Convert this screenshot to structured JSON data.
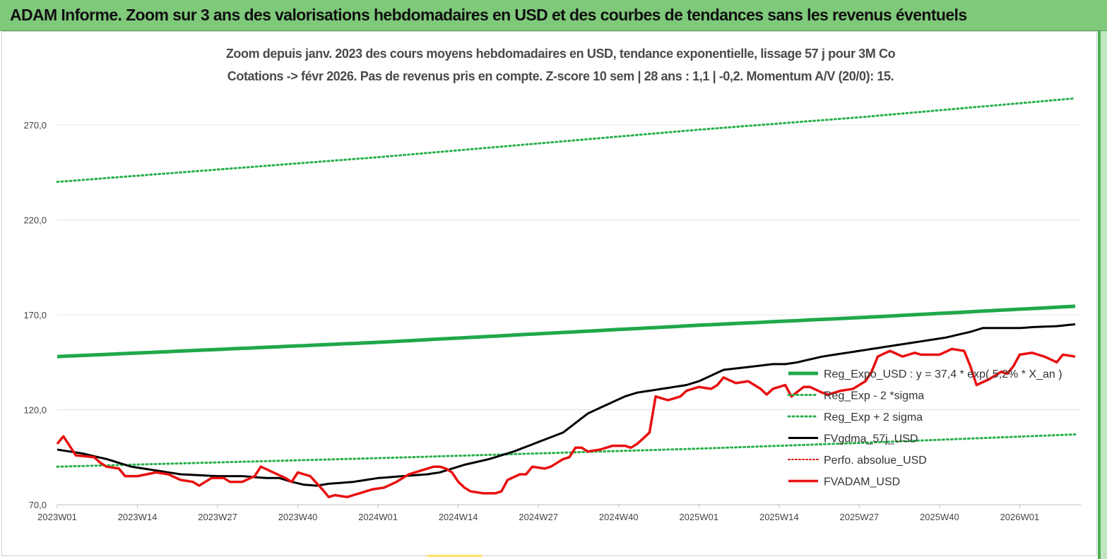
{
  "header": {
    "title": "ADAM Informe. Zoom sur 3 ans des valorisations hebdomadaires en USD et des courbes de tendances sans les revenus éventuels"
  },
  "colors": {
    "banner": "#7ec97a",
    "reg_expo": "#1fa84a",
    "sigma": "#28b04a",
    "fvgdma": "#000000",
    "perfo": "#e01010",
    "fvadam": "#e81010"
  },
  "chart_data": {
    "type": "line",
    "title": "Zoom depuis janv. 2023 des cours moyens hebdomadaires en USD, tendance exponentielle, lissage 57 j pour 3M Co",
    "subtitle": "Cotations -> févr 2026.  Pas de revenus pris en compte. Z-score 10 sem | 28 ans : 1,1 | -0,2. Momentum A/V (20/0): 15.",
    "ylim": [
      70,
      295
    ],
    "yticks": [
      "70,0",
      "120,0",
      "170,0",
      "220,0",
      "270,0"
    ],
    "ytick_values": [
      70,
      120,
      170,
      220,
      270
    ],
    "x_count": 166,
    "xticks": [
      "2023W01",
      "2023W14",
      "2023W27",
      "2023W40",
      "2024W01",
      "2024W14",
      "2024W27",
      "2024W40",
      "2025W01",
      "2025W14",
      "2025W27",
      "2025W40",
      "2026W01"
    ],
    "xtick_index": [
      0,
      13,
      26,
      39,
      52,
      65,
      78,
      91,
      104,
      117,
      130,
      143,
      156
    ],
    "grid": true,
    "legend_position": "right",
    "series": [
      {
        "name": "Reg_Expo_USD : y = 37,4 * exp( 5,2% *  X_an )",
        "style": "solid-thick",
        "anchors": [
          [
            0,
            148
          ],
          [
            52,
            155.5
          ],
          [
            104,
            164.5
          ],
          [
            130,
            168.5
          ],
          [
            165,
            174.5
          ]
        ]
      },
      {
        "name": "Reg_Exp - 2 *sigma",
        "style": "dotted",
        "anchors": [
          [
            0,
            90
          ],
          [
            52,
            94.5
          ],
          [
            104,
            99.5
          ],
          [
            130,
            102.5
          ],
          [
            165,
            107
          ]
        ]
      },
      {
        "name": "Reg_Exp + 2 sigma",
        "style": "dotted",
        "anchors": [
          [
            0,
            240
          ],
          [
            52,
            253
          ],
          [
            104,
            267.5
          ],
          [
            130,
            274
          ],
          [
            165,
            284
          ]
        ]
      },
      {
        "name": "FVgdma_57j_USD",
        "style": "solid",
        "anchors": [
          [
            0,
            99
          ],
          [
            4,
            97
          ],
          [
            8,
            94
          ],
          [
            12,
            90
          ],
          [
            16,
            88
          ],
          [
            20,
            86
          ],
          [
            26,
            85
          ],
          [
            30,
            85
          ],
          [
            34,
            84
          ],
          [
            36,
            84
          ],
          [
            38,
            82
          ],
          [
            40,
            80.5
          ],
          [
            42,
            80
          ],
          [
            44,
            81
          ],
          [
            48,
            82
          ],
          [
            52,
            84
          ],
          [
            56,
            85
          ],
          [
            60,
            86
          ],
          [
            62,
            87
          ],
          [
            64,
            89
          ],
          [
            66,
            91
          ],
          [
            70,
            94
          ],
          [
            74,
            98
          ],
          [
            78,
            103
          ],
          [
            82,
            108
          ],
          [
            84,
            113
          ],
          [
            86,
            118
          ],
          [
            88,
            121
          ],
          [
            90,
            124
          ],
          [
            92,
            127
          ],
          [
            94,
            129
          ],
          [
            96,
            130
          ],
          [
            98,
            131
          ],
          [
            102,
            133
          ],
          [
            104,
            135
          ],
          [
            106,
            138
          ],
          [
            108,
            141
          ],
          [
            112,
            142.5
          ],
          [
            116,
            144
          ],
          [
            118,
            144
          ],
          [
            120,
            145
          ],
          [
            124,
            148
          ],
          [
            128,
            150
          ],
          [
            132,
            152
          ],
          [
            136,
            154
          ],
          [
            140,
            156
          ],
          [
            144,
            158
          ],
          [
            148,
            161
          ],
          [
            150,
            163
          ],
          [
            154,
            163
          ],
          [
            156,
            163
          ],
          [
            158,
            163.5
          ],
          [
            162,
            164
          ],
          [
            165,
            165
          ]
        ]
      },
      {
        "name": "Perfo. absolue_USD",
        "style": "dotted-red"
      },
      {
        "name": "FVADAM_USD",
        "style": "solid-red",
        "anchors": [
          [
            0,
            102
          ],
          [
            1,
            106
          ],
          [
            2,
            101
          ],
          [
            3,
            96
          ],
          [
            6,
            95
          ],
          [
            7,
            92
          ],
          [
            8,
            90
          ],
          [
            10,
            89
          ],
          [
            11,
            85
          ],
          [
            13,
            85
          ],
          [
            16,
            87
          ],
          [
            18,
            86
          ],
          [
            20,
            83
          ],
          [
            22,
            82
          ],
          [
            23,
            80
          ],
          [
            25,
            84
          ],
          [
            27,
            84
          ],
          [
            28,
            82
          ],
          [
            30,
            82
          ],
          [
            32,
            85
          ],
          [
            33,
            90
          ],
          [
            35,
            87
          ],
          [
            37,
            84
          ],
          [
            38,
            82
          ],
          [
            39,
            87
          ],
          [
            41,
            85
          ],
          [
            43,
            78
          ],
          [
            44,
            74
          ],
          [
            45,
            75
          ],
          [
            47,
            74
          ],
          [
            49,
            76
          ],
          [
            51,
            78
          ],
          [
            53,
            79
          ],
          [
            55,
            82
          ],
          [
            57,
            86
          ],
          [
            59,
            88
          ],
          [
            61,
            90
          ],
          [
            62,
            90
          ],
          [
            63,
            89
          ],
          [
            64,
            87
          ],
          [
            65,
            82
          ],
          [
            66,
            79
          ],
          [
            67,
            77
          ],
          [
            69,
            76
          ],
          [
            71,
            76
          ],
          [
            72,
            77
          ],
          [
            73,
            83
          ],
          [
            75,
            86
          ],
          [
            76,
            86
          ],
          [
            77,
            90
          ],
          [
            79,
            89
          ],
          [
            80,
            90
          ],
          [
            82,
            94
          ],
          [
            83,
            95
          ],
          [
            84,
            100
          ],
          [
            85,
            100
          ],
          [
            86,
            98
          ],
          [
            88,
            99
          ],
          [
            90,
            101
          ],
          [
            92,
            101
          ],
          [
            93,
            100
          ],
          [
            94,
            102
          ],
          [
            96,
            108
          ],
          [
            97,
            127
          ],
          [
            99,
            125
          ],
          [
            101,
            127
          ],
          [
            102,
            130
          ],
          [
            104,
            132
          ],
          [
            106,
            131
          ],
          [
            107,
            133
          ],
          [
            108,
            137
          ],
          [
            110,
            134
          ],
          [
            112,
            135
          ],
          [
            114,
            131
          ],
          [
            115,
            128
          ],
          [
            116,
            131
          ],
          [
            118,
            133
          ],
          [
            119,
            127
          ],
          [
            121,
            132
          ],
          [
            122,
            132
          ],
          [
            124,
            129
          ],
          [
            125,
            128
          ],
          [
            127,
            130
          ],
          [
            129,
            131
          ],
          [
            131,
            135
          ],
          [
            132,
            140
          ],
          [
            133,
            148
          ],
          [
            135,
            151
          ],
          [
            137,
            148
          ],
          [
            139,
            150
          ],
          [
            140,
            149
          ],
          [
            143,
            149
          ],
          [
            145,
            152
          ],
          [
            147,
            151
          ],
          [
            148,
            143
          ],
          [
            149,
            133
          ],
          [
            151,
            136
          ],
          [
            153,
            140
          ],
          [
            154,
            139
          ],
          [
            155,
            143
          ],
          [
            156,
            149
          ],
          [
            158,
            150
          ],
          [
            160,
            148
          ],
          [
            162,
            145
          ],
          [
            163,
            149
          ],
          [
            165,
            148
          ]
        ]
      }
    ],
    "legend": [
      {
        "label": "Reg_Expo_USD : y = 37,4 * exp( 5,2% *  X_an )",
        "key": "reg_expo"
      },
      {
        "label": "Reg_Exp - 2 *sigma",
        "key": "sigma_minus"
      },
      {
        "label": "Reg_Exp + 2 sigma",
        "key": "sigma_plus"
      },
      {
        "label": "FVgdma_57j_USD",
        "key": "fvgdma"
      },
      {
        "label": "Perfo. absolue_USD",
        "key": "perfo"
      },
      {
        "label": "FVADAM_USD",
        "key": "fvadam"
      }
    ]
  }
}
